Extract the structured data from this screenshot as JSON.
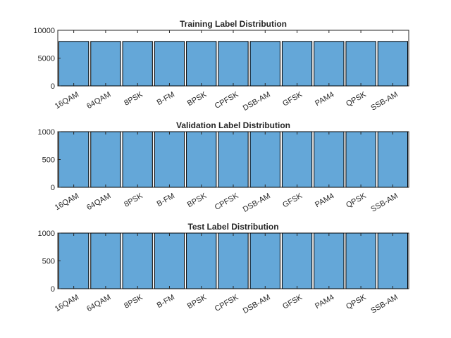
{
  "chart_data": [
    {
      "type": "bar",
      "title": "Training Label Distribution",
      "categories": [
        "16QAM",
        "64QAM",
        "8PSK",
        "B-FM",
        "BPSK",
        "CPFSK",
        "DSB-AM",
        "GFSK",
        "PAM4",
        "QPSK",
        "SSB-AM"
      ],
      "values": [
        8000,
        8000,
        8000,
        8000,
        8000,
        8000,
        8000,
        8000,
        8000,
        8000,
        8000
      ],
      "ylim": [
        0,
        10000
      ],
      "yticks": [
        "0",
        "5000",
        "10000"
      ],
      "bar_color": "#64a7d8"
    },
    {
      "type": "bar",
      "title": "Validation Label Distribution",
      "categories": [
        "16QAM",
        "64QAM",
        "8PSK",
        "B-FM",
        "BPSK",
        "CPFSK",
        "DSB-AM",
        "GFSK",
        "PAM4",
        "QPSK",
        "SSB-AM"
      ],
      "values": [
        1000,
        1000,
        1000,
        1000,
        1000,
        1000,
        1000,
        1000,
        1000,
        1000,
        1000
      ],
      "ylim": [
        0,
        1000
      ],
      "yticks": [
        "0",
        "500",
        "1000"
      ],
      "bar_color": "#64a7d8"
    },
    {
      "type": "bar",
      "title": "Test Label Distribution",
      "categories": [
        "16QAM",
        "64QAM",
        "8PSK",
        "B-FM",
        "BPSK",
        "CPFSK",
        "DSB-AM",
        "GFSK",
        "PAM4",
        "QPSK",
        "SSB-AM"
      ],
      "values": [
        1000,
        1000,
        1000,
        1000,
        1000,
        1000,
        1000,
        1000,
        1000,
        1000,
        1000
      ],
      "ylim": [
        0,
        1000
      ],
      "yticks": [
        "0",
        "500",
        "1000"
      ],
      "bar_color": "#64a7d8"
    }
  ]
}
